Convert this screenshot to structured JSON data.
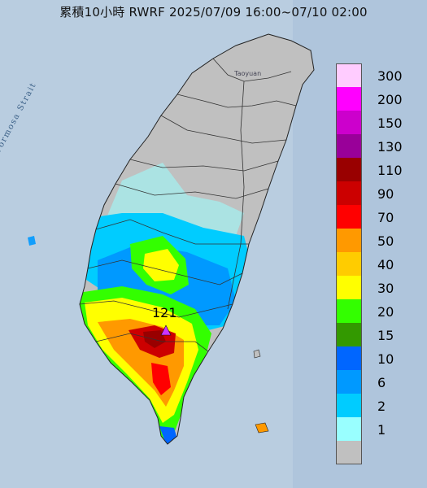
{
  "title": "累積10小時 RWRF 2025/07/09 16:00~07/10 02:00",
  "map_labels": {
    "strait": "Formosa Strait",
    "city": "Taoyuan",
    "peak_value": "121"
  },
  "legend": {
    "unit": "",
    "items": [
      {
        "label": "300",
        "color": "#ffccff"
      },
      {
        "label": "200",
        "color": "#ff00ff"
      },
      {
        "label": "150",
        "color": "#cc00cc"
      },
      {
        "label": "130",
        "color": "#990099"
      },
      {
        "label": "110",
        "color": "#990000"
      },
      {
        "label": "90",
        "color": "#cc0000"
      },
      {
        "label": "70",
        "color": "#ff0000"
      },
      {
        "label": "50",
        "color": "#ff9900"
      },
      {
        "label": "40",
        "color": "#ffcc00"
      },
      {
        "label": "30",
        "color": "#ffff00"
      },
      {
        "label": "20",
        "color": "#33ff00"
      },
      {
        "label": "15",
        "color": "#339900"
      },
      {
        "label": "10",
        "color": "#0066ff"
      },
      {
        "label": "6",
        "color": "#0099ff"
      },
      {
        "label": "2",
        "color": "#00ccff"
      },
      {
        "label": "1",
        "color": "#99ffff"
      },
      {
        "label": "",
        "color": "#c0c0c0"
      }
    ]
  },
  "colors": {
    "sea": "#b9cde0",
    "land_dry": "#c0c0c0",
    "boundary": "#333333",
    "peak_marker": "#cc33ff"
  }
}
